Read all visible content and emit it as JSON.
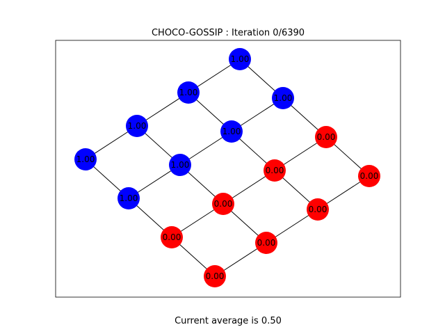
{
  "figure": {
    "title": "CHOCO-GOSSIP : Iteration 0/6390",
    "footer": "Current average is 0.50"
  },
  "colors": {
    "high": "#0000ff",
    "low": "#ff0000",
    "edge": "#000000",
    "background": "#ffffff"
  },
  "graph": {
    "type": "grid",
    "rows": 4,
    "cols": 4,
    "nodes": [
      {
        "id": "r0c0",
        "value": "1.00",
        "state": "high"
      },
      {
        "id": "r0c1",
        "value": "1.00",
        "state": "high"
      },
      {
        "id": "r0c2",
        "value": "1.00",
        "state": "high"
      },
      {
        "id": "r0c3",
        "value": "1.00",
        "state": "high"
      },
      {
        "id": "r1c0",
        "value": "1.00",
        "state": "high"
      },
      {
        "id": "r1c1",
        "value": "1.00",
        "state": "high"
      },
      {
        "id": "r1c2",
        "value": "1.00",
        "state": "high"
      },
      {
        "id": "r1c3",
        "value": "1.00",
        "state": "high"
      },
      {
        "id": "r2c0",
        "value": "0.00",
        "state": "low"
      },
      {
        "id": "r2c1",
        "value": "0.00",
        "state": "low"
      },
      {
        "id": "r2c2",
        "value": "0.00",
        "state": "low"
      },
      {
        "id": "r2c3",
        "value": "0.00",
        "state": "low"
      },
      {
        "id": "r3c0",
        "value": "0.00",
        "state": "low"
      },
      {
        "id": "r3c1",
        "value": "0.00",
        "state": "low"
      },
      {
        "id": "r3c2",
        "value": "0.00",
        "state": "low"
      },
      {
        "id": "r3c3",
        "value": "0.00",
        "state": "low"
      }
    ]
  }
}
